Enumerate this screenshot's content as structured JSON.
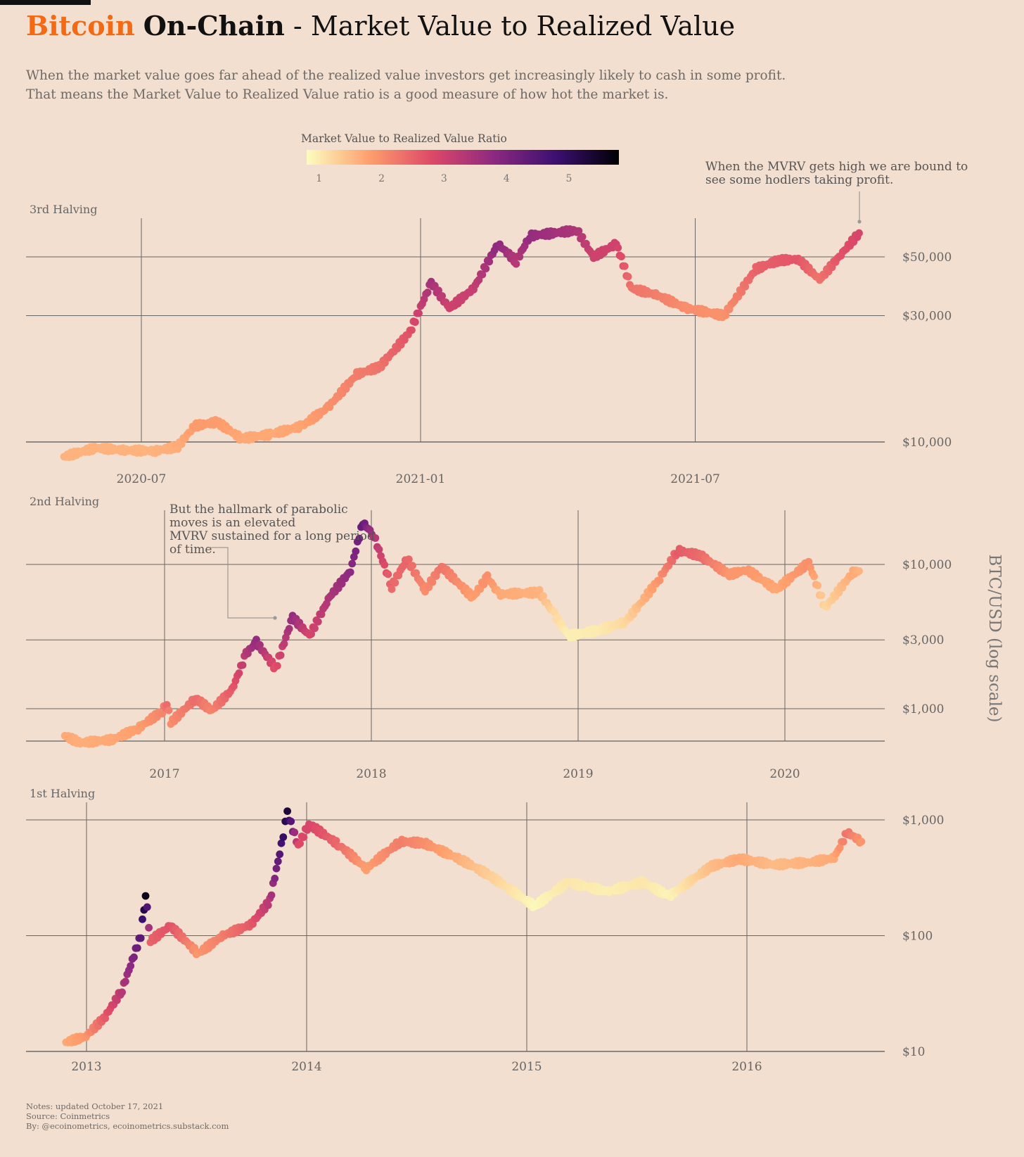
{
  "title": {
    "brand": "Bitcoin",
    "topic": "On-Chain",
    "rest": "- Market Value to Realized Value"
  },
  "subtitle": [
    "When the market value goes far ahead of the realized value investors get increasingly likely to cash in some profit.",
    "That means the Market Value to Realized Value ratio is a good measure of how hot the market is."
  ],
  "footer": [
    "Notes: updated October 17, 2021",
    "Source: Coinmetrics",
    "By: @ecoinometrics, ecoinometrics.substack.com"
  ],
  "chart_data": [
    {
      "type": "scatter",
      "panel_label": "3rd Halving",
      "ylabel": "BTC/USD (log scale)",
      "y_scale": "log",
      "x_ticks": [
        "2020-07",
        "2021-01",
        "2021-07"
      ],
      "y_ticks": [
        "$10,000",
        "$30,000",
        "$50,000"
      ],
      "annotation": "When the MVRV gets high we are bound to see some hodlers taking profit.",
      "points": [
        [
          "2020-05-11",
          8800,
          1.6
        ],
        [
          "2020-06-01",
          9500,
          1.6
        ],
        [
          "2020-06-20",
          9300,
          1.6
        ],
        [
          "2020-07-10",
          9250,
          1.6
        ],
        [
          "2020-07-25",
          9600,
          1.65
        ],
        [
          "2020-08-05",
          11500,
          1.85
        ],
        [
          "2020-08-20",
          11900,
          1.85
        ],
        [
          "2020-09-05",
          10300,
          1.7
        ],
        [
          "2020-09-25",
          10700,
          1.7
        ],
        [
          "2020-10-15",
          11500,
          1.75
        ],
        [
          "2020-11-01",
          13500,
          1.95
        ],
        [
          "2020-11-20",
          18000,
          2.2
        ],
        [
          "2020-12-05",
          19200,
          2.3
        ],
        [
          "2020-12-25",
          26000,
          2.7
        ],
        [
          "2021-01-08",
          40000,
          3.5
        ],
        [
          "2021-01-20",
          32000,
          3.0
        ],
        [
          "2021-02-05",
          38000,
          3.1
        ],
        [
          "2021-02-21",
          56000,
          3.8
        ],
        [
          "2021-03-05",
          48000,
          3.3
        ],
        [
          "2021-03-14",
          60000,
          3.7
        ],
        [
          "2021-04-14",
          63000,
          3.4
        ],
        [
          "2021-04-25",
          50000,
          3.0
        ],
        [
          "2021-05-10",
          56000,
          3.0
        ],
        [
          "2021-05-20",
          38000,
          2.3
        ],
        [
          "2021-06-05",
          36000,
          2.2
        ],
        [
          "2021-06-25",
          32000,
          2.0
        ],
        [
          "2021-07-20",
          30000,
          1.95
        ],
        [
          "2021-08-10",
          45000,
          2.5
        ],
        [
          "2021-08-25",
          48500,
          2.6
        ],
        [
          "2021-09-07",
          49000,
          2.65
        ],
        [
          "2021-09-21",
          41000,
          2.3
        ],
        [
          "2021-10-05",
          51000,
          2.7
        ],
        [
          "2021-10-17",
          61500,
          2.9
        ]
      ]
    },
    {
      "type": "scatter",
      "panel_label": "2nd Halving",
      "ylabel": "BTC/USD (log scale)",
      "y_scale": "log",
      "x_ticks": [
        "2017",
        "2018",
        "2019",
        "2020"
      ],
      "y_ticks": [
        "$1,000",
        "$3,000",
        "$10,000"
      ],
      "annotation": "But the hallmark of parabolic moves is an elevated MVRV sustained for a long period of time.",
      "points": [
        [
          "2016-07-09",
          650,
          1.7
        ],
        [
          "2016-08-05",
          580,
          1.65
        ],
        [
          "2016-10-01",
          610,
          1.7
        ],
        [
          "2016-11-15",
          730,
          1.8
        ],
        [
          "2016-12-28",
          960,
          2.1
        ],
        [
          "2017-01-05",
          1100,
          2.4
        ],
        [
          "2017-01-12",
          800,
          2.0
        ],
        [
          "2017-02-25",
          1180,
          2.4
        ],
        [
          "2017-03-25",
          970,
          2.1
        ],
        [
          "2017-04-30",
          1350,
          2.6
        ],
        [
          "2017-05-25",
          2400,
          3.3
        ],
        [
          "2017-06-12",
          2900,
          3.7
        ],
        [
          "2017-07-16",
          1900,
          2.7
        ],
        [
          "2017-08-15",
          4300,
          3.7
        ],
        [
          "2017-09-14",
          3200,
          2.9
        ],
        [
          "2017-10-20",
          6000,
          3.4
        ],
        [
          "2017-11-25",
          9000,
          3.8
        ],
        [
          "2017-12-17",
          19500,
          4.3
        ],
        [
          "2018-01-05",
          16000,
          3.4
        ],
        [
          "2018-02-06",
          7000,
          2.4
        ],
        [
          "2018-03-05",
          11000,
          2.5
        ],
        [
          "2018-04-06",
          6600,
          2.0
        ],
        [
          "2018-05-05",
          9700,
          2.3
        ],
        [
          "2018-06-29",
          5900,
          1.8
        ],
        [
          "2018-07-25",
          8200,
          2.0
        ],
        [
          "2018-08-14",
          6200,
          1.7
        ],
        [
          "2018-10-25",
          6400,
          1.6
        ],
        [
          "2018-11-20",
          4500,
          1.2
        ],
        [
          "2018-12-15",
          3200,
          0.95
        ],
        [
          "2019-02-07",
          3500,
          1.0
        ],
        [
          "2019-03-25",
          4000,
          1.2
        ],
        [
          "2019-04-15",
          5000,
          1.45
        ],
        [
          "2019-05-25",
          8000,
          1.95
        ],
        [
          "2019-06-26",
          12500,
          2.6
        ],
        [
          "2019-08-05",
          11500,
          2.4
        ],
        [
          "2019-09-25",
          8500,
          1.9
        ],
        [
          "2019-10-26",
          9200,
          1.9
        ],
        [
          "2019-12-17",
          6700,
          1.7
        ],
        [
          "2020-02-12",
          10300,
          2.0
        ],
        [
          "2020-03-12",
          5000,
          1.2
        ],
        [
          "2020-04-30",
          8800,
          1.7
        ],
        [
          "2020-05-11",
          9000,
          1.6
        ]
      ]
    },
    {
      "type": "scatter",
      "panel_label": "1st Halving",
      "ylabel": "BTC/USD (log scale)",
      "y_scale": "log",
      "x_ticks": [
        "2013",
        "2014",
        "2015",
        "2016"
      ],
      "y_ticks": [
        "$10",
        "$100",
        "$1,000"
      ],
      "points": [
        [
          "2012-11-28",
          12,
          1.7
        ],
        [
          "2012-12-31",
          13.5,
          1.9
        ],
        [
          "2013-02-01",
          20,
          2.6
        ],
        [
          "2013-03-01",
          34,
          3.3
        ],
        [
          "2013-04-01",
          100,
          4.4
        ],
        [
          "2013-04-09",
          230,
          5.6
        ],
        [
          "2013-04-17",
          90,
          2.5
        ],
        [
          "2013-05-20",
          122,
          2.7
        ],
        [
          "2013-07-05",
          70,
          1.9
        ],
        [
          "2013-08-15",
          100,
          2.2
        ],
        [
          "2013-10-01",
          125,
          2.6
        ],
        [
          "2013-11-01",
          200,
          3.3
        ],
        [
          "2013-11-20",
          600,
          4.7
        ],
        [
          "2013-11-30",
          1150,
          5.3
        ],
        [
          "2013-12-18",
          600,
          2.8
        ],
        [
          "2014-01-05",
          920,
          2.9
        ],
        [
          "2014-02-25",
          600,
          2.4
        ],
        [
          "2014-04-10",
          380,
          1.8
        ],
        [
          "2014-06-05",
          650,
          2.2
        ],
        [
          "2014-07-15",
          630,
          2.0
        ],
        [
          "2014-09-15",
          450,
          1.6
        ],
        [
          "2014-11-01",
          330,
          1.3
        ],
        [
          "2015-01-14",
          180,
          0.85
        ],
        [
          "2015-03-10",
          290,
          1.05
        ],
        [
          "2015-05-15",
          240,
          0.95
        ],
        [
          "2015-07-12",
          290,
          1.05
        ],
        [
          "2015-08-25",
          220,
          0.9
        ],
        [
          "2015-11-04",
          400,
          1.5
        ],
        [
          "2015-12-20",
          460,
          1.7
        ],
        [
          "2016-02-15",
          410,
          1.5
        ],
        [
          "2016-04-15",
          430,
          1.6
        ],
        [
          "2016-05-25",
          470,
          1.7
        ],
        [
          "2016-06-15",
          780,
          2.3
        ],
        [
          "2016-07-09",
          650,
          1.9
        ]
      ]
    }
  ],
  "colorbar": {
    "title": "Market Value to Realized Value Ratio",
    "ticks": [
      "1",
      "2",
      "3",
      "4",
      "5"
    ],
    "colors": [
      "#fcfdbf",
      "#fe9f6d",
      "#de4968",
      "#8c2981",
      "#3b0f70",
      "#000004"
    ]
  },
  "accent_color": "#f26a13"
}
